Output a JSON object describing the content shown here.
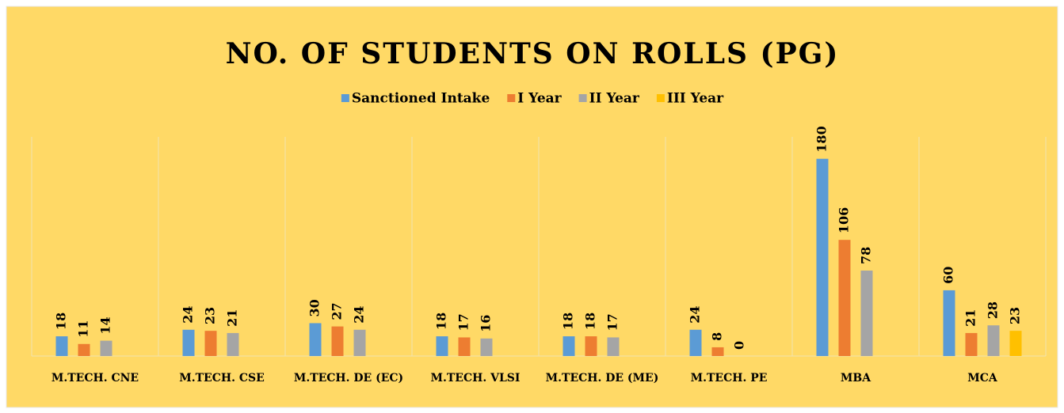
{
  "chart_data": {
    "type": "bar",
    "title": "NO. OF STUDENTS ON ROLLS (PG)",
    "categories": [
      "M.TECH. CNE",
      "M.TECH. CSE",
      "M.TECH. DE (EC)",
      "M.TECH. VLSI",
      "M.TECH. DE (ME)",
      "M.TECH. PE",
      "MBA",
      "MCA"
    ],
    "series": [
      {
        "name": "Sanctioned Intake",
        "color": "#5b9bd5",
        "values": [
          18,
          24,
          30,
          18,
          18,
          24,
          180,
          60
        ]
      },
      {
        "name": "I Year",
        "color": "#ed7d31",
        "values": [
          11,
          23,
          27,
          17,
          18,
          8,
          106,
          21
        ]
      },
      {
        "name": "II Year",
        "color": "#a5a5a5",
        "values": [
          14,
          21,
          24,
          16,
          17,
          0,
          78,
          28
        ]
      },
      {
        "name": "III Year",
        "color": "#ffc000",
        "values": [
          null,
          null,
          null,
          null,
          null,
          null,
          null,
          23
        ]
      }
    ],
    "ylim": [
      0,
      200
    ],
    "background": "#ffd966",
    "category_grid": true
  }
}
